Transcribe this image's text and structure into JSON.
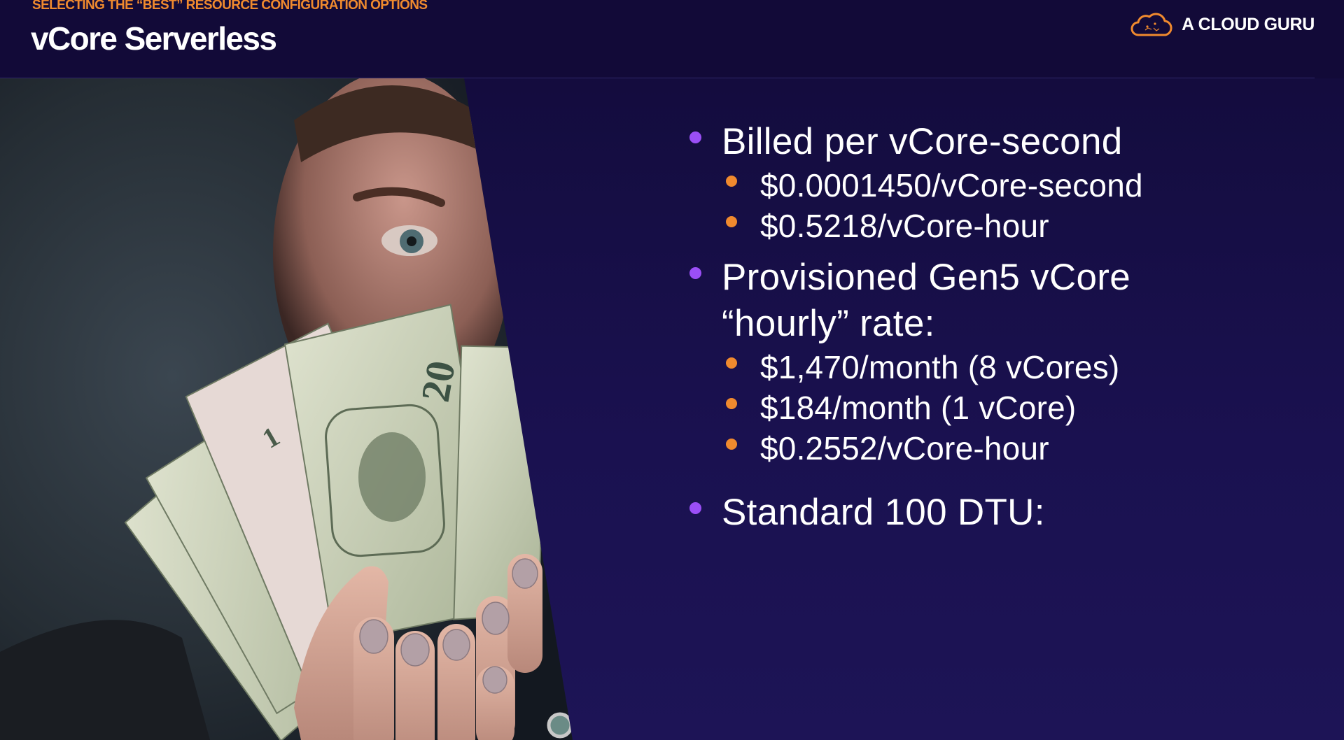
{
  "header": {
    "kicker": "SELECTING THE “BEST” RESOURCE CONFIGURATION OPTIONS",
    "title": "vCore Serverless",
    "logo_text": "A CLOUD GURU"
  },
  "photo": {
    "icon": "money-fan-photo",
    "note_denomination_1": "20",
    "note_denomination_2": "1"
  },
  "bullets": [
    {
      "text": "Billed per vCore-second",
      "sub": [
        "$0.0001450/vCore-second",
        "$0.5218/vCore-hour"
      ]
    },
    {
      "text_line1": "Provisioned Gen5 vCore",
      "text_line2": "“hourly” rate:",
      "sub": [
        "$1,470/month (8 vCores)",
        "$184/month (1 vCore)",
        "$0.2552/vCore-hour"
      ]
    },
    {
      "text": "Standard 100 DTU:"
    }
  ],
  "colors": {
    "background": "#170f45",
    "header": "#120a38",
    "accent_orange": "#f08a2e",
    "accent_purple": "#9b4ff7"
  }
}
